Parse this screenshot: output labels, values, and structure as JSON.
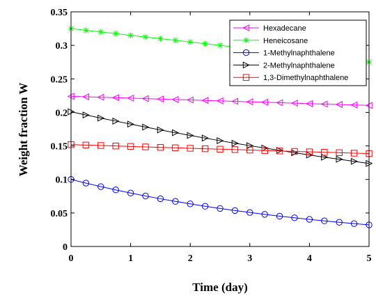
{
  "chart_data": {
    "type": "line",
    "title": "",
    "xlabel": "Time (day)",
    "ylabel": "Weight fraction W",
    "xlim": [
      0,
      5
    ],
    "ylim": [
      0,
      0.35
    ],
    "xticks": [
      0,
      1,
      2,
      3,
      4,
      5
    ],
    "yticks": [
      0,
      0.05,
      0.1,
      0.15,
      0.2,
      0.25,
      0.3,
      0.35
    ],
    "xtick_labels": [
      "0",
      "1",
      "2",
      "3",
      "4",
      "5"
    ],
    "ytick_labels": [
      "0",
      "0.05",
      "0.1",
      "0.15",
      "0.2",
      "0.25",
      "0.3",
      "0.35"
    ],
    "grid": false,
    "legend_position": "top-right",
    "x": [
      0,
      0.25,
      0.5,
      0.75,
      1,
      1.25,
      1.5,
      1.75,
      2,
      2.25,
      2.5,
      2.75,
      3,
      3.25,
      3.5,
      3.75,
      4,
      4.25,
      4.5,
      4.75,
      5
    ],
    "series": [
      {
        "name": "Hexadecane",
        "color": "#ff00ff",
        "marker": "triangle-left",
        "values": [
          0.224,
          0.2233,
          0.2226,
          0.222,
          0.2213,
          0.2206,
          0.2199,
          0.2192,
          0.2186,
          0.2179,
          0.2172,
          0.2165,
          0.2158,
          0.2152,
          0.2145,
          0.2138,
          0.2131,
          0.2124,
          0.2118,
          0.2111,
          0.2104
        ]
      },
      {
        "name": "Heneicosane",
        "color": "#00ff00",
        "marker": "star",
        "values": [
          0.325,
          0.3225,
          0.32,
          0.3175,
          0.315,
          0.3125,
          0.31,
          0.3075,
          0.305,
          0.3025,
          0.3,
          0.2975,
          0.295,
          0.2925,
          0.29,
          0.2875,
          0.285,
          0.2825,
          0.28,
          0.2775,
          0.275
        ]
      },
      {
        "name": "1-Methylnaphthalene",
        "color": "#0000ff",
        "marker": "circle",
        "values": [
          0.1,
          0.0945,
          0.0893,
          0.0844,
          0.0797,
          0.0753,
          0.0712,
          0.0673,
          0.0636,
          0.06,
          0.0567,
          0.0536,
          0.0507,
          0.0479,
          0.0452,
          0.0428,
          0.0404,
          0.0382,
          0.0361,
          0.0341,
          0.0322
        ]
      },
      {
        "name": "2-Methylnaphthalene",
        "color": "#000000",
        "marker": "triangle-right",
        "values": [
          0.201,
          0.1962,
          0.1915,
          0.187,
          0.1825,
          0.1781,
          0.1738,
          0.1697,
          0.1656,
          0.1617,
          0.1578,
          0.154,
          0.1504,
          0.1468,
          0.1433,
          0.1398,
          0.1365,
          0.1332,
          0.1301,
          0.127,
          0.1239
        ]
      },
      {
        "name": "1,3-Dimethylnaphthalene",
        "color": "#ff0000",
        "marker": "square",
        "values": [
          0.152,
          0.1513,
          0.1506,
          0.1499,
          0.1492,
          0.1485,
          0.1478,
          0.1472,
          0.1465,
          0.1458,
          0.1451,
          0.1445,
          0.1438,
          0.1431,
          0.1425,
          0.1418,
          0.1412,
          0.1405,
          0.1399,
          0.1392,
          0.1386
        ]
      }
    ]
  }
}
